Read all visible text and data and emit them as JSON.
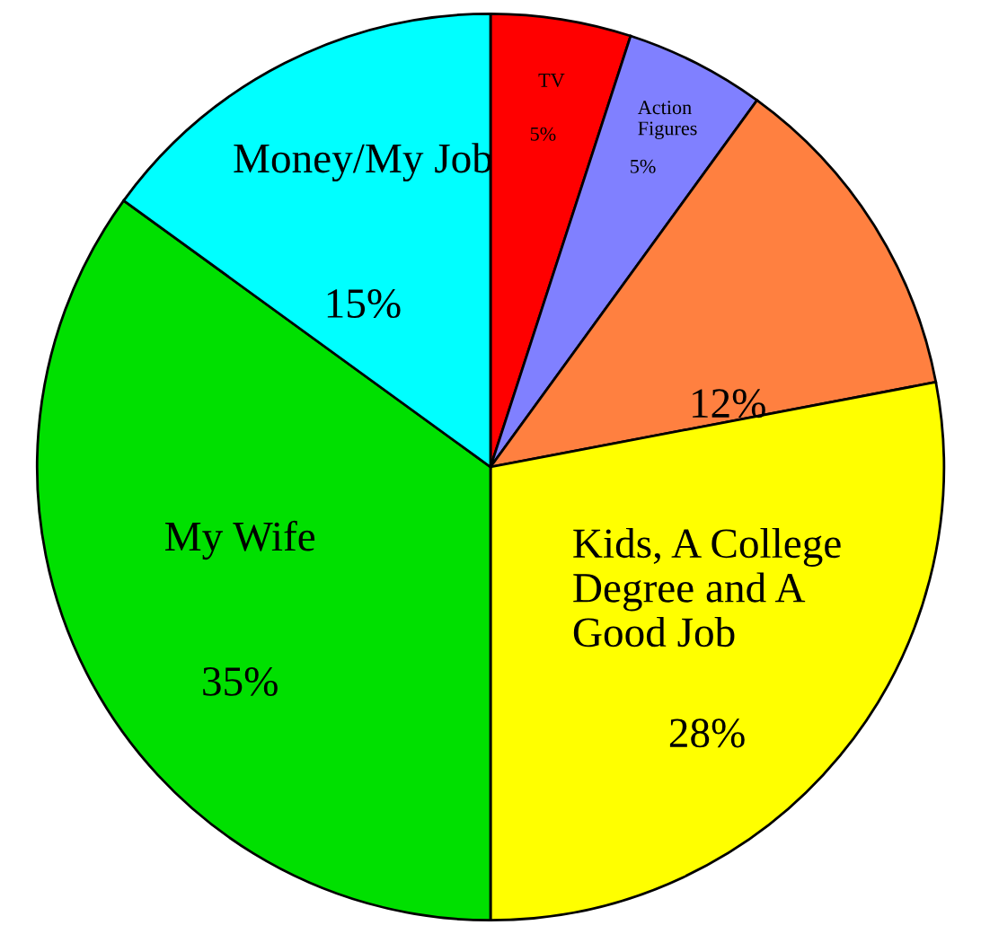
{
  "chart_data": {
    "type": "pie",
    "categories": [
      "TV",
      "Action\nFigures",
      null,
      "Kids, A College\nDegree and A\nGood Job",
      "My Wife",
      "Money/My Job"
    ],
    "values": [
      5,
      5,
      12,
      28,
      35,
      15
    ],
    "colors": [
      "#ff0000",
      "#8080ff",
      "#ff8040",
      "#ffff00",
      "#00e000",
      "#00ffff"
    ],
    "value_labels": [
      "5%",
      "5%",
      "12%",
      "28%",
      "35%",
      "15%"
    ]
  }
}
